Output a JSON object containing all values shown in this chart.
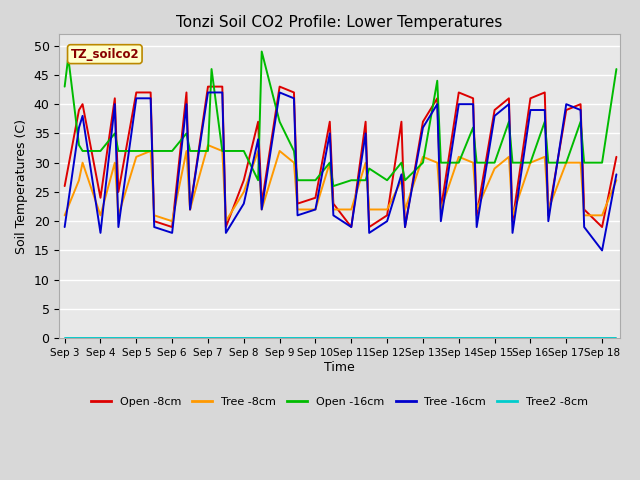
{
  "title": "Tonzi Soil CO2 Profile: Lower Temperatures",
  "xlabel": "Time",
  "ylabel": "Soil Temperatures (C)",
  "annotation": "TZ_soilco2",
  "ylim": [
    0,
    52
  ],
  "xlim": [
    -0.15,
    15.5
  ],
  "yticks": [
    0,
    5,
    10,
    15,
    20,
    25,
    30,
    35,
    40,
    45,
    50
  ],
  "xtick_labels": [
    "Sep 3",
    "Sep 4",
    "Sep 5",
    "Sep 6",
    "Sep 7",
    "Sep 8",
    "Sep 9",
    "Sep 10",
    "Sep 11",
    "Sep 12",
    "Sep 13",
    "Sep 14",
    "Sep 15",
    "Sep 16",
    "Sep 17",
    "Sep 18"
  ],
  "xtick_pos": [
    0,
    1,
    2,
    3,
    4,
    5,
    6,
    7,
    8,
    9,
    10,
    11,
    12,
    13,
    14,
    15
  ],
  "fig_bg": "#d8d8d8",
  "ax_bg": "#e8e8e8",
  "grid_color": "#ffffff",
  "series_order": [
    "Open -8cm",
    "Tree -8cm",
    "Open -16cm",
    "Tree -16cm",
    "Tree2 -8cm"
  ],
  "series": {
    "Open -8cm": {
      "color": "#dd0000",
      "linewidth": 1.4,
      "x": [
        0.0,
        0.4,
        0.5,
        1.0,
        1.4,
        1.5,
        2.0,
        2.4,
        2.5,
        3.0,
        3.4,
        3.5,
        4.0,
        4.4,
        4.5,
        5.0,
        5.4,
        5.5,
        6.0,
        6.4,
        6.5,
        7.0,
        7.4,
        7.5,
        8.0,
        8.4,
        8.5,
        9.0,
        9.4,
        9.5,
        10.0,
        10.4,
        10.5,
        11.0,
        11.4,
        11.5,
        12.0,
        12.4,
        12.5,
        13.0,
        13.4,
        13.5,
        14.0,
        14.4,
        14.5,
        15.0,
        15.4
      ],
      "y": [
        26,
        39,
        40,
        24,
        41,
        25,
        42,
        42,
        20,
        19,
        42,
        22,
        43,
        43,
        19,
        27,
        37,
        23,
        43,
        42,
        23,
        24,
        37,
        23,
        19,
        37,
        19,
        21,
        37,
        19,
        37,
        41,
        22,
        42,
        41,
        21,
        39,
        41,
        20,
        41,
        42,
        21,
        39,
        40,
        22,
        19,
        31
      ]
    },
    "Tree -8cm": {
      "color": "#ff9900",
      "linewidth": 1.4,
      "x": [
        0.0,
        0.4,
        0.5,
        1.0,
        1.4,
        1.5,
        2.0,
        2.4,
        2.5,
        3.0,
        3.4,
        3.5,
        4.0,
        4.4,
        4.5,
        5.0,
        5.4,
        5.5,
        6.0,
        6.4,
        6.5,
        7.0,
        7.4,
        7.5,
        8.0,
        8.4,
        8.5,
        9.0,
        9.4,
        9.5,
        10.0,
        10.4,
        10.5,
        11.0,
        11.4,
        11.5,
        12.0,
        12.4,
        12.5,
        13.0,
        13.4,
        13.5,
        14.0,
        14.4,
        14.5,
        15.0,
        15.4
      ],
      "y": [
        21,
        27,
        30,
        21,
        30,
        21,
        31,
        32,
        21,
        20,
        32,
        22,
        33,
        32,
        20,
        25,
        32,
        22,
        32,
        30,
        22,
        22,
        30,
        22,
        22,
        30,
        22,
        22,
        27,
        22,
        31,
        30,
        22,
        31,
        30,
        22,
        29,
        31,
        21,
        30,
        31,
        22,
        30,
        30,
        21,
        21,
        27
      ]
    },
    "Open -16cm": {
      "color": "#00bb00",
      "linewidth": 1.4,
      "x": [
        0.0,
        0.1,
        0.4,
        0.5,
        1.0,
        1.4,
        1.5,
        2.0,
        2.4,
        2.5,
        3.0,
        3.4,
        3.5,
        4.0,
        4.1,
        4.4,
        4.5,
        5.0,
        5.4,
        5.5,
        6.0,
        6.4,
        6.5,
        7.0,
        7.4,
        7.5,
        8.0,
        8.4,
        8.5,
        9.0,
        9.4,
        9.5,
        10.0,
        10.4,
        10.5,
        11.0,
        11.4,
        11.5,
        12.0,
        12.4,
        12.5,
        13.0,
        13.4,
        13.5,
        14.0,
        14.4,
        14.5,
        15.0,
        15.4
      ],
      "y": [
        43,
        48,
        33,
        32,
        32,
        35,
        32,
        32,
        32,
        32,
        32,
        35,
        32,
        32,
        46,
        32,
        32,
        32,
        27,
        49,
        37,
        32,
        27,
        27,
        30,
        26,
        27,
        27,
        29,
        27,
        30,
        27,
        30,
        44,
        30,
        30,
        36,
        30,
        30,
        37,
        30,
        30,
        37,
        30,
        30,
        37,
        30,
        30,
        46
      ]
    },
    "Tree -16cm": {
      "color": "#0000cc",
      "linewidth": 1.4,
      "x": [
        0.0,
        0.4,
        0.5,
        1.0,
        1.4,
        1.5,
        2.0,
        2.4,
        2.5,
        3.0,
        3.4,
        3.5,
        4.0,
        4.4,
        4.5,
        5.0,
        5.4,
        5.5,
        6.0,
        6.4,
        6.5,
        7.0,
        7.4,
        7.5,
        8.0,
        8.4,
        8.5,
        9.0,
        9.4,
        9.5,
        10.0,
        10.4,
        10.5,
        11.0,
        11.4,
        11.5,
        12.0,
        12.4,
        12.5,
        13.0,
        13.4,
        13.5,
        14.0,
        14.4,
        14.5,
        15.0,
        15.4
      ],
      "y": [
        19,
        36,
        38,
        18,
        40,
        19,
        41,
        41,
        19,
        18,
        40,
        22,
        42,
        42,
        18,
        23,
        34,
        22,
        42,
        41,
        21,
        22,
        35,
        21,
        19,
        35,
        18,
        20,
        28,
        19,
        36,
        40,
        20,
        40,
        40,
        19,
        38,
        40,
        18,
        39,
        39,
        20,
        40,
        39,
        19,
        15,
        28
      ]
    },
    "Tree2 -8cm": {
      "color": "#00cccc",
      "linewidth": 1.4,
      "x": [
        0.0,
        15.4
      ],
      "y": [
        0.0,
        0.0
      ]
    }
  },
  "legend": [
    {
      "label": "Open -8cm",
      "color": "#dd0000"
    },
    {
      "label": "Tree -8cm",
      "color": "#ff9900"
    },
    {
      "label": "Open -16cm",
      "color": "#00bb00"
    },
    {
      "label": "Tree -16cm",
      "color": "#0000cc"
    },
    {
      "label": "Tree2 -8cm",
      "color": "#00cccc"
    }
  ]
}
